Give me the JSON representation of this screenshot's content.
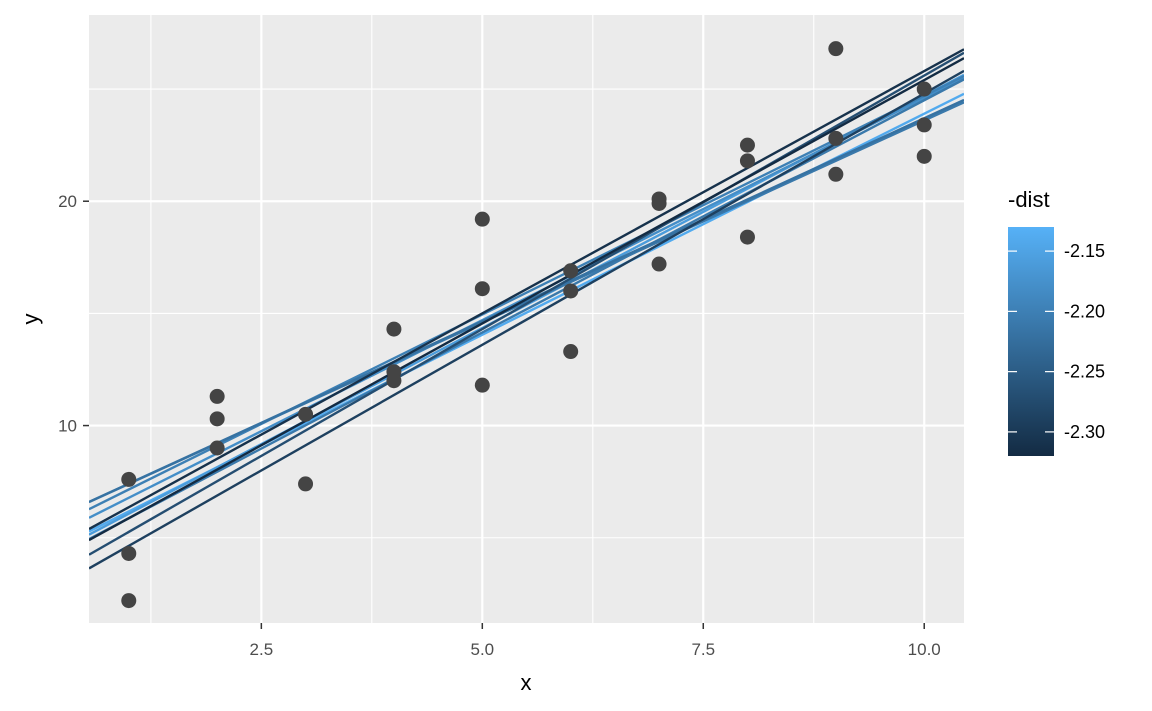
{
  "chart_data": {
    "type": "scatter",
    "xlabel": "x",
    "ylabel": "y",
    "xlim": [
      0.55,
      10.45
    ],
    "ylim": [
      1.2,
      28.3
    ],
    "x_ticks": [
      {
        "value": 2.5,
        "label": "2.5"
      },
      {
        "value": 5.0,
        "label": "5.0"
      },
      {
        "value": 7.5,
        "label": "7.5"
      },
      {
        "value": 10.0,
        "label": "10.0"
      }
    ],
    "x_minor_ticks": [
      1.25,
      3.75,
      6.25,
      8.75
    ],
    "y_ticks": [
      {
        "value": 10,
        "label": "10"
      },
      {
        "value": 20,
        "label": "20"
      }
    ],
    "y_minor_ticks": [
      5,
      15,
      25
    ],
    "background": "#ebebeb",
    "grid": true,
    "point_color": "#444444",
    "points": [
      {
        "x": 1,
        "y": 7.6
      },
      {
        "x": 1,
        "y": 4.3
      },
      {
        "x": 1,
        "y": 2.2
      },
      {
        "x": 2,
        "y": 11.3
      },
      {
        "x": 2,
        "y": 10.3
      },
      {
        "x": 2,
        "y": 9.0
      },
      {
        "x": 3,
        "y": 10.5
      },
      {
        "x": 3,
        "y": 7.4
      },
      {
        "x": 4,
        "y": 14.3
      },
      {
        "x": 4,
        "y": 12.4
      },
      {
        "x": 4,
        "y": 12.0
      },
      {
        "x": 5,
        "y": 19.2
      },
      {
        "x": 5,
        "y": 16.1
      },
      {
        "x": 5,
        "y": 11.8
      },
      {
        "x": 6,
        "y": 16.9
      },
      {
        "x": 6,
        "y": 16.0
      },
      {
        "x": 6,
        "y": 13.3
      },
      {
        "x": 7,
        "y": 20.1
      },
      {
        "x": 7,
        "y": 19.9
      },
      {
        "x": 7,
        "y": 17.2
      },
      {
        "x": 8,
        "y": 22.5
      },
      {
        "x": 8,
        "y": 21.8
      },
      {
        "x": 8,
        "y": 18.4
      },
      {
        "x": 9,
        "y": 26.8
      },
      {
        "x": 9,
        "y": 22.8
      },
      {
        "x": 9,
        "y": 21.2
      },
      {
        "x": 10,
        "y": 25.0
      },
      {
        "x": 10,
        "y": 23.4
      },
      {
        "x": 10,
        "y": 22.0
      }
    ],
    "lines": [
      {
        "intercept": 4.2,
        "slope": 1.97,
        "dist": -2.14
      },
      {
        "intercept": 4.0,
        "slope": 2.07,
        "dist": -2.16
      },
      {
        "intercept": 4.8,
        "slope": 1.98,
        "dist": -2.18
      },
      {
        "intercept": 3.8,
        "slope": 2.07,
        "dist": -2.21
      },
      {
        "intercept": 5.2,
        "slope": 1.95,
        "dist": -2.2
      },
      {
        "intercept": 5.6,
        "slope": 1.8,
        "dist": -2.21
      },
      {
        "intercept": 5.6,
        "slope": 1.81,
        "dist": -2.22
      },
      {
        "intercept": 3.0,
        "slope": 2.26,
        "dist": -2.27
      },
      {
        "intercept": 2.4,
        "slope": 2.24,
        "dist": -2.29
      },
      {
        "intercept": 4.2,
        "slope": 2.16,
        "dist": -2.31
      },
      {
        "intercept": 3.7,
        "slope": 2.17,
        "dist": -2.32
      }
    ],
    "legend": {
      "title": "-dist",
      "placement": "right",
      "range": [
        -2.32,
        -2.13
      ],
      "low_color": "#132b43",
      "high_color": "#56b1f7",
      "breaks": [
        {
          "value": -2.15,
          "label": "-2.15"
        },
        {
          "value": -2.2,
          "label": "-2.20"
        },
        {
          "value": -2.25,
          "label": "-2.25"
        },
        {
          "value": -2.3,
          "label": "-2.30"
        }
      ]
    }
  }
}
